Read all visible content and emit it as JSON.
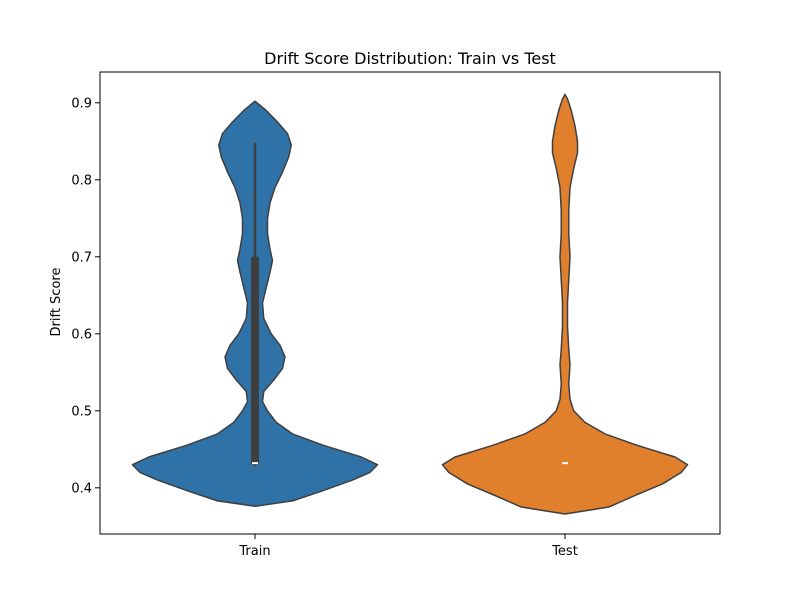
{
  "chart_data": {
    "type": "violin",
    "title": "Drift Score Distribution: Train vs Test",
    "xlabel": "",
    "ylabel": "Drift Score",
    "ylim": [
      0.34,
      0.94
    ],
    "yticks": [
      0.4,
      0.5,
      0.6,
      0.7,
      0.8,
      0.9
    ],
    "ytick_labels": [
      "0.4",
      "0.5",
      "0.6",
      "0.7",
      "0.8",
      "0.9"
    ],
    "categories": [
      "Train",
      "Test"
    ],
    "grid": false,
    "legend": "none",
    "series": [
      {
        "category": "Train",
        "color": "#2e72a8",
        "range": [
          0.376,
          0.902
        ],
        "box": {
          "q1": 0.43,
          "median": 0.432,
          "q3": 0.7
        },
        "whisker": [
          0.428,
          0.848
        ],
        "density": [
          [
            0.376,
            0.0
          ],
          [
            0.383,
            0.3
          ],
          [
            0.395,
            0.52
          ],
          [
            0.41,
            0.78
          ],
          [
            0.42,
            0.92
          ],
          [
            0.43,
            0.98
          ],
          [
            0.44,
            0.85
          ],
          [
            0.455,
            0.55
          ],
          [
            0.47,
            0.3
          ],
          [
            0.485,
            0.17
          ],
          [
            0.5,
            0.1
          ],
          [
            0.512,
            0.06
          ],
          [
            0.525,
            0.07
          ],
          [
            0.54,
            0.15
          ],
          [
            0.555,
            0.22
          ],
          [
            0.57,
            0.24
          ],
          [
            0.585,
            0.2
          ],
          [
            0.6,
            0.13
          ],
          [
            0.62,
            0.07
          ],
          [
            0.64,
            0.06
          ],
          [
            0.66,
            0.09
          ],
          [
            0.68,
            0.12
          ],
          [
            0.695,
            0.14
          ],
          [
            0.71,
            0.12
          ],
          [
            0.73,
            0.1
          ],
          [
            0.75,
            0.1
          ],
          [
            0.77,
            0.12
          ],
          [
            0.79,
            0.16
          ],
          [
            0.81,
            0.22
          ],
          [
            0.83,
            0.27
          ],
          [
            0.845,
            0.29
          ],
          [
            0.86,
            0.26
          ],
          [
            0.875,
            0.18
          ],
          [
            0.89,
            0.09
          ],
          [
            0.902,
            0.0
          ]
        ]
      },
      {
        "category": "Test",
        "color": "#e07f2c",
        "range": [
          0.366,
          0.911
        ],
        "median": 0.432,
        "density": [
          [
            0.366,
            0.0
          ],
          [
            0.375,
            0.35
          ],
          [
            0.39,
            0.56
          ],
          [
            0.405,
            0.78
          ],
          [
            0.42,
            0.93
          ],
          [
            0.43,
            0.98
          ],
          [
            0.44,
            0.88
          ],
          [
            0.455,
            0.58
          ],
          [
            0.47,
            0.32
          ],
          [
            0.485,
            0.16
          ],
          [
            0.5,
            0.07
          ],
          [
            0.515,
            0.04
          ],
          [
            0.535,
            0.03
          ],
          [
            0.56,
            0.04
          ],
          [
            0.58,
            0.03
          ],
          [
            0.61,
            0.02
          ],
          [
            0.64,
            0.02
          ],
          [
            0.67,
            0.03
          ],
          [
            0.7,
            0.04
          ],
          [
            0.73,
            0.03
          ],
          [
            0.76,
            0.03
          ],
          [
            0.79,
            0.04
          ],
          [
            0.815,
            0.07
          ],
          [
            0.835,
            0.1
          ],
          [
            0.85,
            0.1
          ],
          [
            0.87,
            0.08
          ],
          [
            0.89,
            0.05
          ],
          [
            0.905,
            0.02
          ],
          [
            0.911,
            0.0
          ]
        ]
      }
    ]
  }
}
